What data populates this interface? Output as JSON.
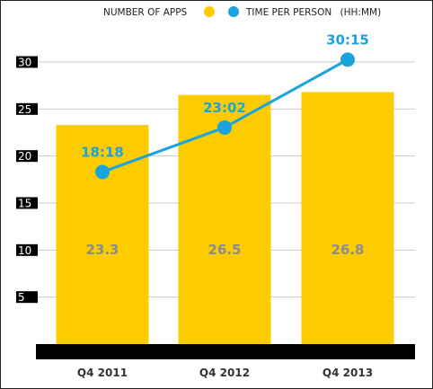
{
  "chart_data": {
    "type": "bar",
    "categories": [
      "Q4 2011",
      "Q4 2012",
      "Q4 2013"
    ],
    "series": [
      {
        "name": "NUMBER OF APPS",
        "type": "bar",
        "values": [
          23.3,
          26.5,
          26.8
        ],
        "labels": [
          "23.3",
          "26.5",
          "26.8"
        ],
        "color": "#fccb00"
      },
      {
        "name": "TIME PER PERSON",
        "legend_suffix": "(HH:MM)",
        "type": "line",
        "values": [
          18.3,
          23.03,
          30.25
        ],
        "labels": [
          "18:18",
          "23:02",
          "30:15"
        ],
        "color": "#1aa3dc"
      }
    ],
    "y_ticks": [
      "5",
      "10",
      "15",
      "20",
      "25",
      "30"
    ],
    "ylim": [
      0,
      30
    ],
    "grid": true,
    "legend": "top"
  },
  "colors": {
    "bar": "#fccb00",
    "line": "#1aa3dc",
    "axis": "#000000",
    "grid": "#cccccc"
  }
}
